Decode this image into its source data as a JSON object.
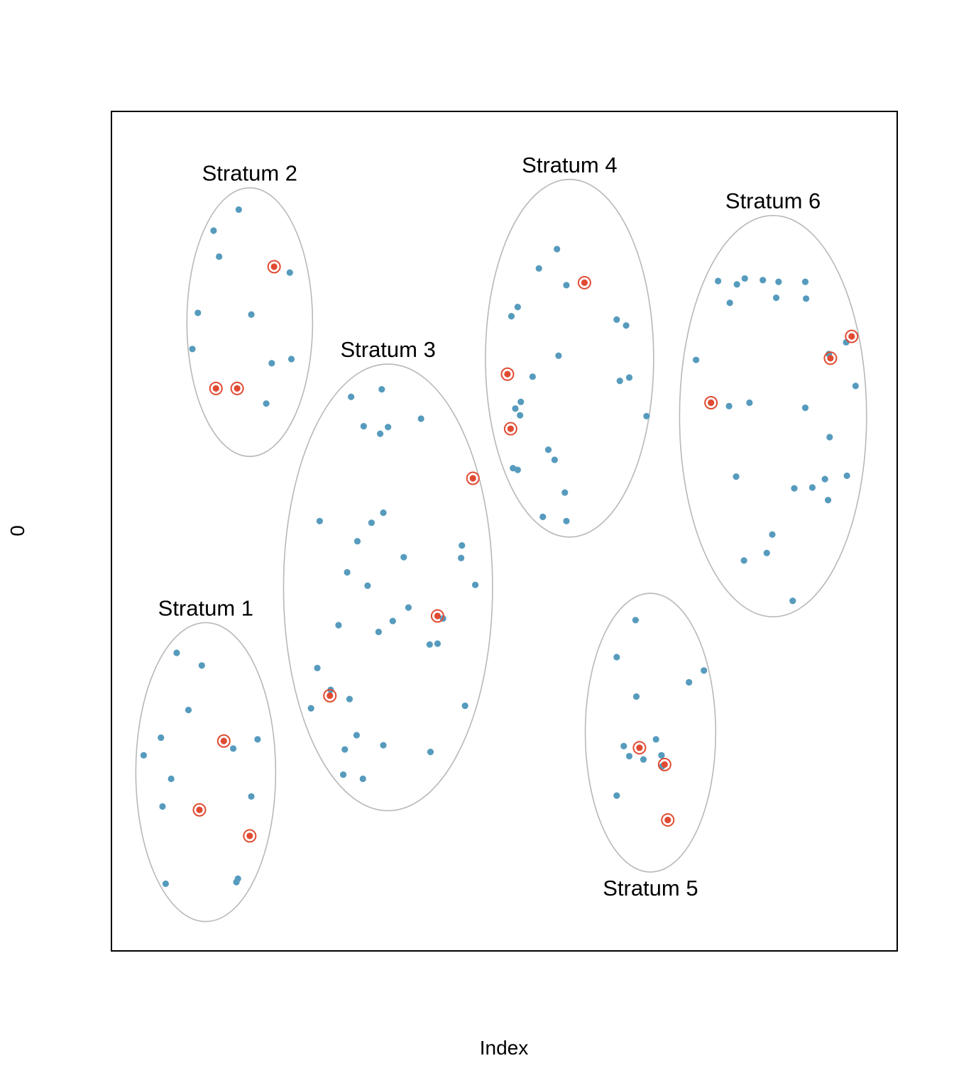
{
  "chart_data": {
    "type": "scatter",
    "title": "",
    "xlabel": "Index",
    "ylabel": "0",
    "xlim": [
      0,
      1
    ],
    "ylim": [
      0,
      1
    ],
    "axes_drawn": false,
    "colors": {
      "population_point": "#569BBD",
      "sampled_point": "#E04B32",
      "stratum_outline": "#B8B8B8",
      "frame": "#000000"
    },
    "strata": [
      {
        "label": "Stratum 1",
        "ellipse": {
          "cx": 0.12,
          "cy": 0.213,
          "rx": 0.089,
          "ry": 0.178
        },
        "points": [
          [
            0.083,
            0.355
          ],
          [
            0.115,
            0.34
          ],
          [
            0.098,
            0.287
          ],
          [
            0.063,
            0.254
          ],
          [
            0.041,
            0.233
          ],
          [
            0.186,
            0.252
          ],
          [
            0.155,
            0.241
          ],
          [
            0.076,
            0.205
          ],
          [
            0.065,
            0.172
          ],
          [
            0.178,
            0.184
          ],
          [
            0.069,
            0.08
          ],
          [
            0.159,
            0.082
          ],
          [
            0.161,
            0.086
          ]
        ],
        "sampled": [
          [
            0.143,
            0.25
          ],
          [
            0.112,
            0.168
          ],
          [
            0.176,
            0.137
          ]
        ]
      },
      {
        "label": "Stratum 2",
        "ellipse": {
          "cx": 0.176,
          "cy": 0.749,
          "rx": 0.08,
          "ry": 0.16
        },
        "points": [
          [
            0.162,
            0.883
          ],
          [
            0.13,
            0.858
          ],
          [
            0.137,
            0.827
          ],
          [
            0.227,
            0.808
          ],
          [
            0.11,
            0.76
          ],
          [
            0.178,
            0.758
          ],
          [
            0.103,
            0.717
          ],
          [
            0.229,
            0.705
          ],
          [
            0.204,
            0.7
          ],
          [
            0.197,
            0.652
          ]
        ],
        "sampled": [
          [
            0.207,
            0.815
          ],
          [
            0.133,
            0.67
          ],
          [
            0.16,
            0.67
          ]
        ]
      },
      {
        "label": "Stratum 3",
        "ellipse": {
          "cx": 0.352,
          "cy": 0.433,
          "rx": 0.133,
          "ry": 0.266
        },
        "points": [
          [
            0.305,
            0.66
          ],
          [
            0.344,
            0.669
          ],
          [
            0.394,
            0.634
          ],
          [
            0.321,
            0.625
          ],
          [
            0.352,
            0.624
          ],
          [
            0.342,
            0.616
          ],
          [
            0.579,
            0.512
          ],
          [
            0.265,
            0.512
          ],
          [
            0.331,
            0.51
          ],
          [
            0.346,
            0.522
          ],
          [
            0.313,
            0.488
          ],
          [
            0.372,
            0.469
          ],
          [
            0.446,
            0.483
          ],
          [
            0.445,
            0.468
          ],
          [
            0.3,
            0.451
          ],
          [
            0.326,
            0.435
          ],
          [
            0.463,
            0.436
          ],
          [
            0.378,
            0.409
          ],
          [
            0.422,
            0.396
          ],
          [
            0.289,
            0.388
          ],
          [
            0.358,
            0.393
          ],
          [
            0.34,
            0.38
          ],
          [
            0.415,
            0.366
          ],
          [
            0.405,
            0.365
          ],
          [
            0.262,
            0.337
          ],
          [
            0.279,
            0.311
          ],
          [
            0.303,
            0.3
          ],
          [
            0.254,
            0.289
          ],
          [
            0.45,
            0.292
          ],
          [
            0.312,
            0.257
          ],
          [
            0.346,
            0.245
          ],
          [
            0.297,
            0.24
          ],
          [
            0.406,
            0.237
          ],
          [
            0.295,
            0.21
          ],
          [
            0.32,
            0.205
          ]
        ],
        "sampled": [
          [
            0.46,
            0.563
          ],
          [
            0.415,
            0.399
          ],
          [
            0.278,
            0.304
          ]
        ]
      },
      {
        "label": "Stratum 4",
        "ellipse": {
          "cx": 0.583,
          "cy": 0.706,
          "rx": 0.107,
          "ry": 0.213
        },
        "points": [
          [
            0.567,
            0.836
          ],
          [
            0.544,
            0.813
          ],
          [
            0.579,
            0.793
          ],
          [
            0.517,
            0.767
          ],
          [
            0.509,
            0.756
          ],
          [
            0.643,
            0.752
          ],
          [
            0.655,
            0.745
          ],
          [
            0.569,
            0.709
          ],
          [
            0.536,
            0.684
          ],
          [
            0.659,
            0.683
          ],
          [
            0.647,
            0.679
          ],
          [
            0.521,
            0.654
          ],
          [
            0.514,
            0.646
          ],
          [
            0.52,
            0.638
          ],
          [
            0.681,
            0.637
          ],
          [
            0.556,
            0.597
          ],
          [
            0.564,
            0.585
          ],
          [
            0.511,
            0.575
          ],
          [
            0.517,
            0.573
          ],
          [
            0.577,
            0.546
          ],
          [
            0.549,
            0.517
          ]
        ],
        "sampled": [
          [
            0.602,
            0.796
          ],
          [
            0.504,
            0.687
          ],
          [
            0.508,
            0.622
          ]
        ]
      },
      {
        "label": "Stratum 5",
        "ellipse": {
          "cx": 0.686,
          "cy": 0.26,
          "rx": 0.083,
          "ry": 0.166
        },
        "points": [
          [
            0.667,
            0.394
          ],
          [
            0.643,
            0.35
          ],
          [
            0.754,
            0.334
          ],
          [
            0.735,
            0.32
          ],
          [
            0.668,
            0.303
          ],
          [
            0.693,
            0.252
          ],
          [
            0.652,
            0.244
          ],
          [
            0.659,
            0.232
          ],
          [
            0.677,
            0.228
          ],
          [
            0.7,
            0.233
          ],
          [
            0.7,
            0.233
          ],
          [
            0.701,
            0.22
          ],
          [
            0.643,
            0.185
          ]
        ],
        "sampled": [
          [
            0.672,
            0.242
          ],
          [
            0.704,
            0.222
          ],
          [
            0.708,
            0.156
          ]
        ]
      },
      {
        "label": "Stratum 6",
        "ellipse": {
          "cx": 0.842,
          "cy": 0.637,
          "rx": 0.119,
          "ry": 0.239
        },
        "points": [
          [
            0.772,
            0.798
          ],
          [
            0.796,
            0.794
          ],
          [
            0.806,
            0.801
          ],
          [
            0.829,
            0.799
          ],
          [
            0.849,
            0.797
          ],
          [
            0.883,
            0.797
          ],
          [
            0.787,
            0.772
          ],
          [
            0.846,
            0.778
          ],
          [
            0.884,
            0.777
          ],
          [
            0.744,
            0.704
          ],
          [
            0.913,
            0.711
          ],
          [
            0.935,
            0.725
          ],
          [
            0.947,
            0.673
          ],
          [
            0.786,
            0.649
          ],
          [
            0.812,
            0.653
          ],
          [
            0.883,
            0.647
          ],
          [
            0.914,
            0.612
          ],
          [
            0.795,
            0.565
          ],
          [
            0.936,
            0.566
          ],
          [
            0.908,
            0.562
          ],
          [
            0.869,
            0.551
          ],
          [
            0.892,
            0.552
          ],
          [
            0.912,
            0.537
          ],
          [
            0.841,
            0.496
          ],
          [
            0.834,
            0.474
          ],
          [
            0.805,
            0.465
          ],
          [
            0.867,
            0.417
          ]
        ],
        "sampled": [
          [
            0.942,
            0.732
          ],
          [
            0.915,
            0.706
          ],
          [
            0.763,
            0.653
          ]
        ]
      }
    ]
  }
}
